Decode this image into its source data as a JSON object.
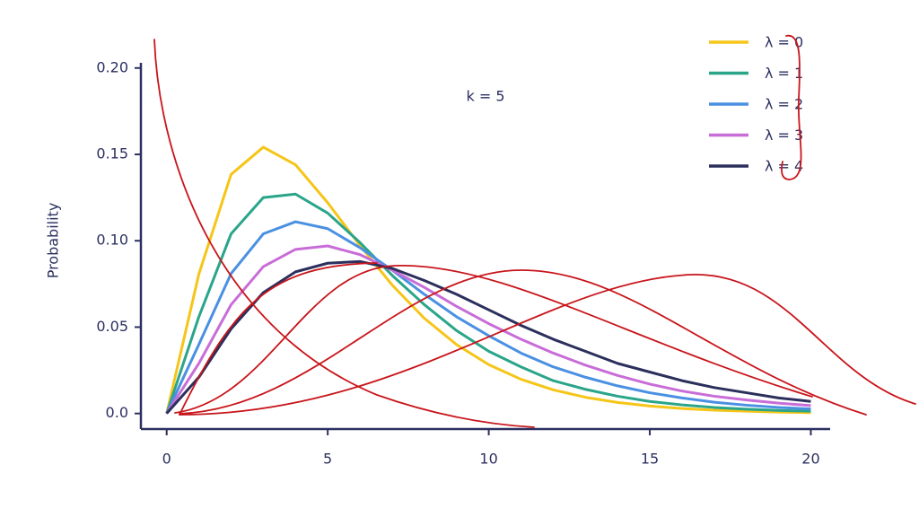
{
  "chart_data": {
    "type": "line",
    "annotation": "k = 5",
    "y_label": "Probability",
    "x": [
      0,
      1,
      2,
      3,
      4,
      5,
      6,
      7,
      8,
      9,
      10,
      11,
      12,
      13,
      14,
      15,
      16,
      17,
      18,
      19,
      20
    ],
    "series": [
      {
        "name": "λ = 0",
        "color": "#f5c518",
        "values": [
          0,
          0.0807,
          0.1384,
          0.1542,
          0.144,
          0.122,
          0.0973,
          0.0744,
          0.0551,
          0.0399,
          0.0283,
          0.0198,
          0.0137,
          0.0094,
          0.0064,
          0.0043,
          0.0029,
          0.0019,
          0.0013,
          0.0008,
          0.0005
        ]
      },
      {
        "name": "λ = 1",
        "color": "#2aa58a",
        "values": [
          0,
          0.056,
          0.104,
          0.125,
          0.127,
          0.116,
          0.099,
          0.08,
          0.063,
          0.048,
          0.036,
          0.027,
          0.019,
          0.014,
          0.01,
          0.007,
          0.005,
          0.0035,
          0.0025,
          0.0018,
          0.0013
        ]
      },
      {
        "name": "λ = 2",
        "color": "#4a90e2",
        "values": [
          0,
          0.04,
          0.081,
          0.104,
          0.111,
          0.107,
          0.096,
          0.083,
          0.069,
          0.056,
          0.045,
          0.035,
          0.027,
          0.021,
          0.016,
          0.012,
          0.009,
          0.0065,
          0.0048,
          0.0035,
          0.0026
        ]
      },
      {
        "name": "λ = 3",
        "color": "#c86dd7",
        "values": [
          0,
          0.029,
          0.063,
          0.085,
          0.095,
          0.097,
          0.092,
          0.083,
          0.073,
          0.062,
          0.052,
          0.043,
          0.035,
          0.028,
          0.022,
          0.017,
          0.013,
          0.01,
          0.0078,
          0.006,
          0.0046
        ]
      },
      {
        "name": "λ = 4",
        "color": "#2b2f5c",
        "values": [
          0,
          0.021,
          0.049,
          0.07,
          0.082,
          0.087,
          0.088,
          0.084,
          0.077,
          0.069,
          0.06,
          0.051,
          0.043,
          0.036,
          0.029,
          0.024,
          0.019,
          0.015,
          0.012,
          0.009,
          0.007
        ]
      }
    ],
    "xlim": [
      -0.8,
      20.6
    ],
    "xticks": [
      0,
      5,
      10,
      15,
      20
    ],
    "ylim": [
      -0.009,
      0.203
    ],
    "yticks": [
      {
        "value": 0,
        "label": "0.0"
      },
      0.05,
      {
        "value": 0.1,
        "label": "0.10"
      },
      0.15,
      {
        "value": 0.2,
        "label": "0.20"
      }
    ],
    "grid": false,
    "legend": "top-right"
  }
}
